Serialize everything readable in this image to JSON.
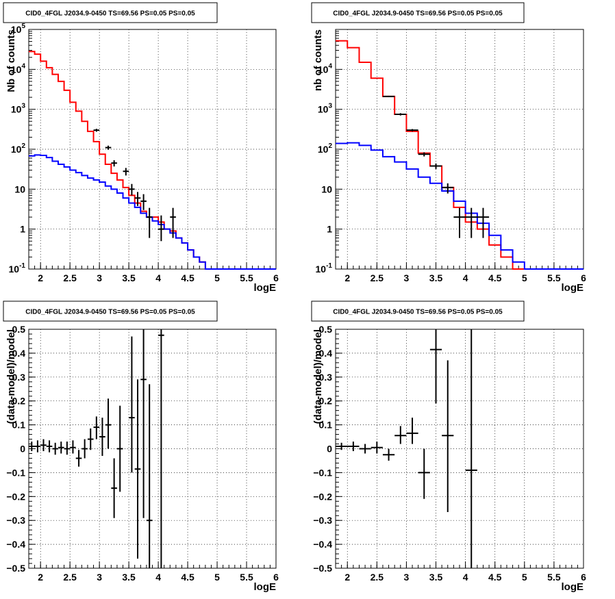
{
  "chart_data": [
    {
      "id": "top_left",
      "type": "line",
      "title": "CID0_4FGL J2034.9-0450 TS=69.56 PS=0.05 PS=0.05",
      "xlabel": "logE",
      "ylabel": "Nb of counts",
      "xlim": [
        1.8,
        6.0
      ],
      "ylim": [
        0.1,
        100000
      ],
      "yscale": "log",
      "grid": true,
      "x_ticks": [
        "2",
        "2.5",
        "3",
        "3.5",
        "4",
        "4.5",
        "5",
        "5.5",
        "6"
      ],
      "y_ticks": [
        {
          "value": 0.1,
          "mantissa": "10",
          "exp": "-1"
        },
        {
          "value": 1,
          "mantissa": "1",
          "exp": ""
        },
        {
          "value": 10,
          "mantissa": "10",
          "exp": ""
        },
        {
          "value": 100,
          "mantissa": "10",
          "exp": "2"
        },
        {
          "value": 1000,
          "mantissa": "10",
          "exp": "3"
        },
        {
          "value": 10000,
          "mantissa": "10",
          "exp": "4"
        },
        {
          "value": 100000,
          "mantissa": "10",
          "exp": "5"
        }
      ],
      "series": [
        {
          "color": "#ff0000",
          "kind": "step",
          "bin_edges": [
            1.8,
            1.9,
            2.0,
            2.1,
            2.2,
            2.3,
            2.4,
            2.5,
            2.6,
            2.7,
            2.8,
            2.9,
            3.0,
            3.1,
            3.2,
            3.3,
            3.4,
            3.5,
            3.6,
            3.7,
            3.8,
            3.9,
            4.0,
            4.1,
            4.2,
            4.3,
            4.4,
            4.5,
            4.6,
            4.7,
            4.8,
            4.9,
            5.0,
            6.0
          ],
          "values": [
            28000,
            24000,
            16000,
            11000,
            7500,
            5000,
            3000,
            1500,
            900,
            500,
            280,
            155,
            75,
            42,
            25,
            17,
            11,
            7,
            4.5,
            2.8,
            2,
            2,
            1.5,
            1,
            0.9,
            0.6,
            0.45,
            0.3,
            0.2,
            0.15,
            0.1,
            0.1,
            0.1
          ]
        },
        {
          "color": "#0000ff",
          "kind": "step",
          "bin_edges": [
            1.8,
            1.9,
            2.0,
            2.1,
            2.2,
            2.3,
            2.4,
            2.5,
            2.6,
            2.7,
            2.8,
            2.9,
            3.0,
            3.1,
            3.2,
            3.3,
            3.4,
            3.5,
            3.6,
            3.7,
            3.8,
            3.9,
            4.0,
            4.1,
            4.2,
            4.3,
            4.4,
            4.5,
            4.6,
            4.7,
            4.8,
            4.9,
            5.0,
            6.0
          ],
          "values": [
            68,
            72,
            70,
            62,
            50,
            42,
            36,
            30,
            26,
            22,
            19,
            17,
            15,
            12,
            10,
            8,
            6,
            4.5,
            3.5,
            2.5,
            2,
            1.6,
            1.3,
            1,
            0.8,
            0.6,
            0.45,
            0.3,
            0.2,
            0.15,
            0.1,
            0.1,
            0.1
          ]
        }
      ],
      "points": [
        {
          "x": 2.95,
          "xerr": 0.05,
          "y": 300,
          "ylo": 275,
          "yhi": 325
        },
        {
          "x": 3.15,
          "xerr": 0.05,
          "y": 110,
          "ylo": 97,
          "yhi": 123
        },
        {
          "x": 3.25,
          "xerr": 0.05,
          "y": 45,
          "ylo": 37,
          "yhi": 53
        },
        {
          "x": 3.45,
          "xerr": 0.05,
          "y": 28,
          "ylo": 22,
          "yhi": 34
        },
        {
          "x": 3.55,
          "xerr": 0.05,
          "y": 10,
          "ylo": 7,
          "yhi": 13.5
        },
        {
          "x": 3.65,
          "xerr": 0.05,
          "y": 6,
          "ylo": 3.8,
          "yhi": 8.5
        },
        {
          "x": 3.75,
          "xerr": 0.05,
          "y": 5,
          "ylo": 3,
          "yhi": 7.5
        },
        {
          "x": 3.85,
          "xerr": 0.05,
          "y": 2,
          "ylo": 0.6,
          "yhi": 3.4
        },
        {
          "x": 4.05,
          "xerr": 0.05,
          "y": 1,
          "ylo": 0.5,
          "yhi": 2.2
        },
        {
          "x": 4.25,
          "xerr": 0.05,
          "y": 2,
          "ylo": 0.6,
          "yhi": 3.4
        }
      ]
    },
    {
      "id": "top_right",
      "type": "line",
      "title": "CID0_4FGL J2034.9-0450 TS=69.56 PS=0.05 PS=0.05",
      "xlabel": "logE",
      "ylabel": "nb of counts",
      "xlim": [
        1.8,
        6.0
      ],
      "ylim": [
        0.1,
        100000
      ],
      "yscale": "log",
      "grid": true,
      "x_ticks": [
        "2",
        "2.5",
        "3",
        "3.5",
        "4",
        "4.5",
        "5",
        "5.5",
        "6"
      ],
      "y_ticks": [
        {
          "value": 0.1,
          "mantissa": "10",
          "exp": "-1"
        },
        {
          "value": 1,
          "mantissa": "1",
          "exp": ""
        },
        {
          "value": 10,
          "mantissa": "10",
          "exp": ""
        },
        {
          "value": 100,
          "mantissa": "10",
          "exp": "2"
        },
        {
          "value": 1000,
          "mantissa": "10",
          "exp": "3"
        },
        {
          "value": 10000,
          "mantissa": "10",
          "exp": "4"
        }
      ],
      "series": [
        {
          "color": "#ff0000",
          "kind": "step",
          "bin_edges": [
            1.8,
            2.0,
            2.2,
            2.4,
            2.6,
            2.8,
            3.0,
            3.2,
            3.4,
            3.6,
            3.8,
            4.0,
            4.2,
            4.4,
            4.6,
            4.8,
            5.0,
            6.0
          ],
          "values": [
            52000,
            35000,
            15000,
            6000,
            2100,
            750,
            280,
            80,
            38,
            11,
            3.5,
            1.5,
            1,
            0.4,
            0.2,
            0.1,
            0.1
          ]
        },
        {
          "color": "#0000ff",
          "kind": "step",
          "bin_edges": [
            1.8,
            2.0,
            2.2,
            2.4,
            2.6,
            2.8,
            3.0,
            3.2,
            3.4,
            3.6,
            3.8,
            4.0,
            4.2,
            4.4,
            4.6,
            4.8,
            5.0,
            6.0
          ],
          "values": [
            140,
            145,
            125,
            95,
            65,
            48,
            32,
            20,
            14,
            9,
            5,
            2.5,
            1.4,
            0.7,
            0.3,
            0.15,
            0.1
          ]
        }
      ],
      "points": [
        {
          "x": 2.7,
          "xerr": 0.1,
          "y": 2100,
          "ylo": 2020,
          "yhi": 2180
        },
        {
          "x": 2.9,
          "xerr": 0.1,
          "y": 750,
          "ylo": 700,
          "yhi": 800
        },
        {
          "x": 3.1,
          "xerr": 0.1,
          "y": 300,
          "ylo": 280,
          "yhi": 320
        },
        {
          "x": 3.3,
          "xerr": 0.1,
          "y": 75,
          "ylo": 66,
          "yhi": 84
        },
        {
          "x": 3.5,
          "xerr": 0.1,
          "y": 38,
          "ylo": 32,
          "yhi": 44
        },
        {
          "x": 3.7,
          "xerr": 0.1,
          "y": 11,
          "ylo": 7.8,
          "yhi": 14
        },
        {
          "x": 3.9,
          "xerr": 0.1,
          "y": 2,
          "ylo": 0.6,
          "yhi": 3.4
        },
        {
          "x": 4.1,
          "xerr": 0.1,
          "y": 2,
          "ylo": 0.6,
          "yhi": 3.4
        },
        {
          "x": 4.3,
          "xerr": 0.1,
          "y": 2,
          "ylo": 0.6,
          "yhi": 3.4
        }
      ]
    },
    {
      "id": "bottom_left",
      "type": "scatter",
      "title": "CID0_4FGL J2034.9-0450 TS=69.56 PS=0.05 PS=0.05",
      "xlabel": "logE",
      "ylabel": "(data-model)/model",
      "xlim": [
        1.8,
        6.0
      ],
      "ylim": [
        -0.5,
        0.5
      ],
      "yscale": "linear",
      "grid": true,
      "x_ticks": [
        "2",
        "2.5",
        "3",
        "3.5",
        "4",
        "4.5",
        "5",
        "5.5",
        "6"
      ],
      "y_ticks": [
        "-0.5",
        "-0.4",
        "-0.3",
        "-0.2",
        "-0.1",
        "0",
        "0.1",
        "0.2",
        "0.3",
        "0.4",
        "0.5"
      ],
      "points": [
        {
          "x": 1.85,
          "xerr": 0.05,
          "y": 0.01,
          "ylo": -0.01,
          "yhi": 0.03
        },
        {
          "x": 1.95,
          "xerr": 0.05,
          "y": 0.01,
          "ylo": -0.015,
          "yhi": 0.035
        },
        {
          "x": 2.05,
          "xerr": 0.05,
          "y": 0.015,
          "ylo": -0.01,
          "yhi": 0.04
        },
        {
          "x": 2.15,
          "xerr": 0.05,
          "y": 0.01,
          "ylo": -0.015,
          "yhi": 0.035
        },
        {
          "x": 2.25,
          "xerr": 0.05,
          "y": 0.0,
          "ylo": -0.025,
          "yhi": 0.025
        },
        {
          "x": 2.35,
          "xerr": 0.05,
          "y": 0.005,
          "ylo": -0.02,
          "yhi": 0.03
        },
        {
          "x": 2.45,
          "xerr": 0.05,
          "y": 0.0,
          "ylo": -0.025,
          "yhi": 0.03
        },
        {
          "x": 2.55,
          "xerr": 0.05,
          "y": 0.005,
          "ylo": -0.02,
          "yhi": 0.035
        },
        {
          "x": 2.65,
          "xerr": 0.05,
          "y": -0.04,
          "ylo": -0.075,
          "yhi": -0.005
        },
        {
          "x": 2.75,
          "xerr": 0.05,
          "y": 0.0,
          "ylo": -0.04,
          "yhi": 0.04
        },
        {
          "x": 2.85,
          "xerr": 0.05,
          "y": 0.04,
          "ylo": -0.005,
          "yhi": 0.085
        },
        {
          "x": 2.95,
          "xerr": 0.05,
          "y": 0.09,
          "ylo": 0.04,
          "yhi": 0.135
        },
        {
          "x": 3.05,
          "xerr": 0.05,
          "y": 0.05,
          "ylo": -0.03,
          "yhi": 0.13
        },
        {
          "x": 3.15,
          "xerr": 0.05,
          "y": 0.1,
          "ylo": 0.0,
          "yhi": 0.21
        },
        {
          "x": 3.25,
          "xerr": 0.05,
          "y": -0.165,
          "ylo": -0.29,
          "yhi": -0.04
        },
        {
          "x": 3.35,
          "xerr": 0.05,
          "y": 0.0,
          "ylo": -0.18,
          "yhi": 0.18
        },
        {
          "x": 3.55,
          "xerr": 0.05,
          "y": 0.13,
          "ylo": -0.1,
          "yhi": 0.47
        },
        {
          "x": 3.65,
          "xerr": 0.05,
          "y": -0.085,
          "ylo": -0.46,
          "yhi": 0.29
        },
        {
          "x": 3.75,
          "xerr": 0.05,
          "y": 0.29,
          "ylo": -0.29,
          "yhi": 0.5
        },
        {
          "x": 3.85,
          "xerr": 0.05,
          "y": -0.3,
          "ylo": -0.5,
          "yhi": 0.27
        },
        {
          "x": 4.05,
          "xerr": 0.05,
          "y": 0.475,
          "ylo": -0.5,
          "yhi": 0.5
        }
      ]
    },
    {
      "id": "bottom_right",
      "type": "scatter",
      "title": "CID0_4FGL J2034.9-0450 TS=69.56 PS=0.05 PS=0.05",
      "xlabel": "logE",
      "ylabel": "(data-model)/model",
      "xlim": [
        1.8,
        6.0
      ],
      "ylim": [
        -0.5,
        0.5
      ],
      "yscale": "linear",
      "grid": true,
      "x_ticks": [
        "2",
        "2.5",
        "3",
        "3.5",
        "4",
        "4.5",
        "5",
        "5.5",
        "6"
      ],
      "y_ticks": [
        "-0.5",
        "-0.4",
        "-0.3",
        "-0.2",
        "-0.1",
        "0",
        "0.1",
        "0.2",
        "0.3",
        "0.4",
        "0.5"
      ],
      "points": [
        {
          "x": 1.9,
          "xerr": 0.1,
          "y": 0.01,
          "ylo": -0.005,
          "yhi": 0.025
        },
        {
          "x": 2.1,
          "xerr": 0.1,
          "y": 0.01,
          "ylo": -0.01,
          "yhi": 0.03
        },
        {
          "x": 2.3,
          "xerr": 0.1,
          "y": 0.0,
          "ylo": -0.02,
          "yhi": 0.02
        },
        {
          "x": 2.5,
          "xerr": 0.1,
          "y": 0.005,
          "ylo": -0.02,
          "yhi": 0.03
        },
        {
          "x": 2.7,
          "xerr": 0.1,
          "y": -0.025,
          "ylo": -0.05,
          "yhi": 0.0
        },
        {
          "x": 2.9,
          "xerr": 0.1,
          "y": 0.055,
          "ylo": 0.02,
          "yhi": 0.095
        },
        {
          "x": 3.1,
          "xerr": 0.1,
          "y": 0.065,
          "ylo": 0.02,
          "yhi": 0.13
        },
        {
          "x": 3.3,
          "xerr": 0.1,
          "y": -0.1,
          "ylo": -0.21,
          "yhi": 0.0
        },
        {
          "x": 3.5,
          "xerr": 0.1,
          "y": 0.415,
          "ylo": 0.19,
          "yhi": 0.5
        },
        {
          "x": 3.7,
          "xerr": 0.1,
          "y": 0.055,
          "ylo": -0.265,
          "yhi": 0.37
        },
        {
          "x": 4.1,
          "xerr": 0.1,
          "y": -0.09,
          "ylo": -0.5,
          "yhi": 0.5
        }
      ]
    }
  ]
}
